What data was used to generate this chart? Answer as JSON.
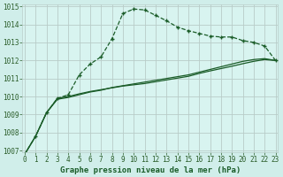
{
  "title": "Graphe pression niveau de la mer (hPa)",
  "bg_color": "#d0eeea",
  "plot_bg_color": "#d8f4f0",
  "grid_color": "#b8ccc8",
  "line_color": "#1a5c28",
  "xmin": 0,
  "xmax": 23,
  "ymin": 1007,
  "ymax": 1015,
  "yticks": [
    1007,
    1008,
    1009,
    1010,
    1011,
    1012,
    1013,
    1014,
    1015
  ],
  "xticks": [
    0,
    1,
    2,
    3,
    4,
    5,
    6,
    7,
    8,
    9,
    10,
    11,
    12,
    13,
    14,
    15,
    16,
    17,
    18,
    19,
    20,
    21,
    22,
    23
  ],
  "series1_x": [
    0,
    1,
    2,
    3,
    4,
    5,
    6,
    7,
    8,
    9,
    10,
    11,
    12,
    13,
    14,
    15,
    16,
    17,
    18,
    19,
    20,
    21,
    22,
    23
  ],
  "series1_y": [
    1006.8,
    1007.8,
    1009.1,
    1009.9,
    1010.1,
    1011.2,
    1011.8,
    1012.2,
    1013.2,
    1014.6,
    1014.85,
    1014.8,
    1014.5,
    1014.2,
    1013.85,
    1013.65,
    1013.5,
    1013.35,
    1013.3,
    1013.3,
    1013.1,
    1013.0,
    1012.8,
    1012.0
  ],
  "series2_x": [
    0,
    1,
    2,
    3,
    4,
    5,
    6,
    7,
    8,
    9,
    10,
    11,
    12,
    13,
    14,
    15,
    16,
    17,
    18,
    19,
    20,
    21,
    22,
    23
  ],
  "series2_y": [
    1006.8,
    1007.8,
    1009.1,
    1009.85,
    1009.95,
    1010.1,
    1010.25,
    1010.35,
    1010.5,
    1010.6,
    1010.7,
    1010.8,
    1010.9,
    1011.0,
    1011.1,
    1011.2,
    1011.35,
    1011.5,
    1011.65,
    1011.8,
    1011.95,
    1012.05,
    1012.1,
    1012.0
  ],
  "series3_x": [
    0,
    1,
    2,
    3,
    4,
    5,
    6,
    7,
    8,
    9,
    10,
    11,
    12,
    13,
    14,
    15,
    16,
    17,
    18,
    19,
    20,
    21,
    22,
    23
  ],
  "series3_y": [
    1006.8,
    1007.8,
    1009.1,
    1009.9,
    1010.0,
    1010.15,
    1010.28,
    1010.38,
    1010.48,
    1010.58,
    1010.65,
    1010.72,
    1010.82,
    1010.92,
    1011.02,
    1011.12,
    1011.28,
    1011.42,
    1011.55,
    1011.68,
    1011.82,
    1011.95,
    1012.05,
    1012.0
  ],
  "tick_color": "#2a5c28",
  "xlabel_color": "#1a5c28",
  "xlabel_fontsize": 6.5,
  "tick_fontsize": 5.5
}
